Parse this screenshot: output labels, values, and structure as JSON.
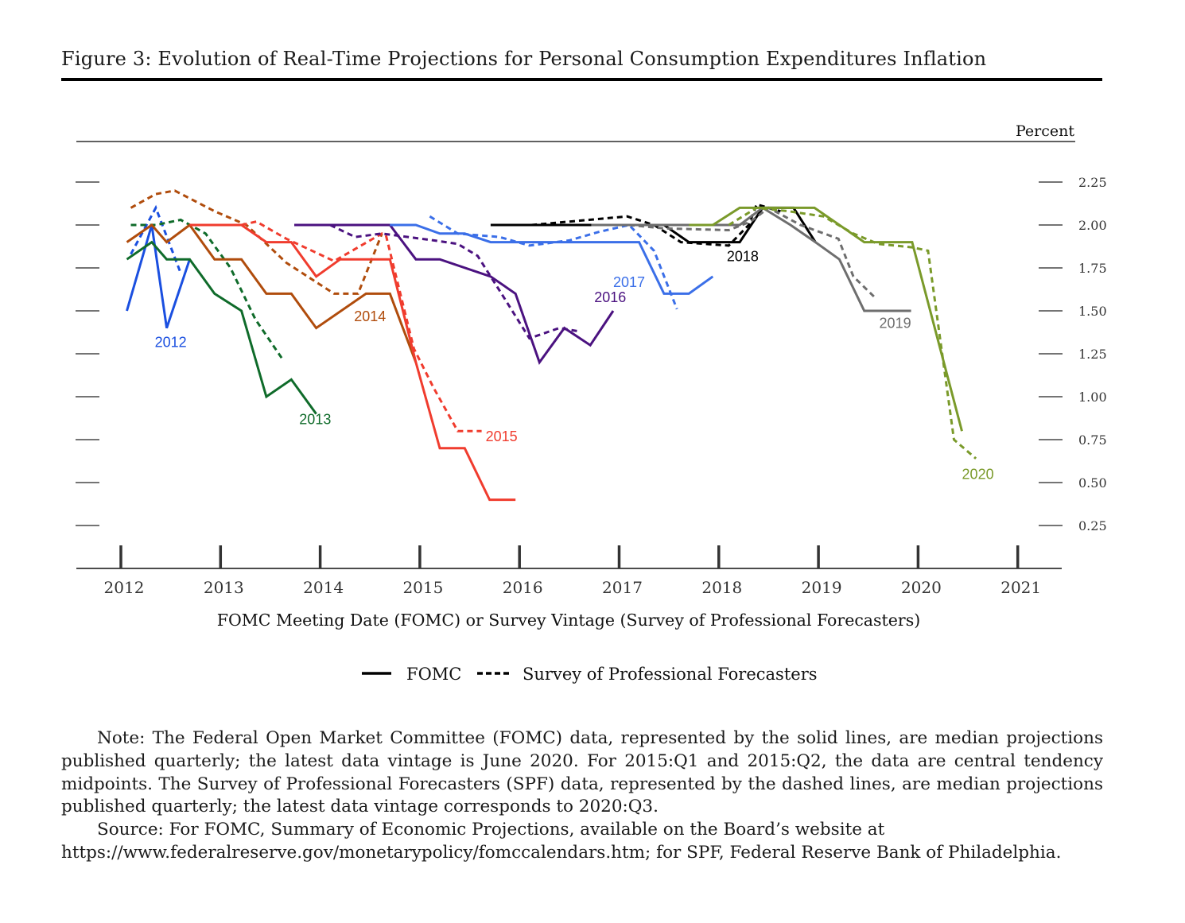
{
  "figure": {
    "title": "Figure 3: Evolution of Real-Time Projections for Personal Consumption Expenditures Inflation",
    "note": "Note: The Federal Open Market Committee (FOMC) data, represented by the solid lines, are median projections published quarterly; the latest data vintage is June 2020. For 2015:Q1 and 2015:Q2, the data are central tendency midpoints. The Survey of Professional Forecasters (SPF) data, represented by the dashed lines, are median projections published quarterly; the latest data vintage corresponds to 2020:Q3.",
    "source_line1": "Source: For FOMC, Summary of Economic Projections, available on the Board’s website at",
    "source_line2": "https://www.federalreserve.gov/monetarypolicy/fomccalendars.htm; for SPF, Federal Reserve Bank of Philadelphia."
  },
  "chart_data": {
    "type": "line",
    "title": "",
    "unit_label": "Percent",
    "xlabel": "FOMC Meeting Date (FOMC) or Survey Vintage (Survey of Professional Forecasters)",
    "ylabel": "Percent",
    "xlim": [
      2011.6,
      2021.45
    ],
    "ylim": [
      0,
      2.5
    ],
    "x_ticks": [
      2012,
      2013,
      2014,
      2015,
      2016,
      2017,
      2018,
      2019,
      2020,
      2021
    ],
    "x_tick_labels": [
      "2012",
      "2013",
      "2014",
      "2015",
      "2016",
      "2017",
      "2018",
      "2019",
      "2020",
      "2021"
    ],
    "y_ticks": [
      0.25,
      0.5,
      0.75,
      1.0,
      1.25,
      1.5,
      1.75,
      2.0,
      2.25
    ],
    "y_tick_labels": [
      "0.25",
      "0.50",
      "0.75",
      "1.00",
      "1.25",
      "1.50",
      "1.75",
      "2.00",
      "2.25"
    ],
    "legend": {
      "placement": "bottom-center",
      "entries": [
        {
          "label": "FOMC",
          "style": "solid"
        },
        {
          "label": "Survey of Professional Forecasters",
          "style": "dashed"
        }
      ]
    },
    "series": [
      {
        "name": "2012",
        "source": "FOMC",
        "style": "solid",
        "color": "#1a4fe0",
        "label_at": [
          2012.5,
          1.29
        ],
        "x": [
          2012.06,
          2012.31,
          2012.46,
          2012.69
        ],
        "y": [
          1.5,
          2.0,
          1.4,
          1.8
        ]
      },
      {
        "name": "2012",
        "source": "SPF",
        "style": "dashed",
        "color": "#1a4fe0",
        "x": [
          2012.1,
          2012.35,
          2012.6
        ],
        "y": [
          1.83,
          2.1,
          1.72
        ]
      },
      {
        "name": "2013",
        "source": "FOMC",
        "style": "solid",
        "color": "#0f6b2a",
        "label_at": [
          2013.95,
          0.84
        ],
        "x": [
          2012.06,
          2012.31,
          2012.46,
          2012.69,
          2012.94,
          2013.21,
          2013.46,
          2013.71,
          2013.96
        ],
        "y": [
          1.8,
          1.9,
          1.8,
          1.8,
          1.6,
          1.5,
          1.0,
          1.1,
          0.9
        ]
      },
      {
        "name": "2013",
        "source": "SPF",
        "style": "dashed",
        "color": "#0f6b2a",
        "x": [
          2012.1,
          2012.35,
          2012.6,
          2012.85,
          2013.1,
          2013.35,
          2013.62
        ],
        "y": [
          2.0,
          2.0,
          2.03,
          1.95,
          1.75,
          1.45,
          1.22
        ]
      },
      {
        "name": "2014",
        "source": "FOMC",
        "style": "solid",
        "color": "#b04c0c",
        "label_at": [
          2014.5,
          1.44
        ],
        "x": [
          2012.06,
          2012.31,
          2012.46,
          2012.69,
          2012.94,
          2013.21,
          2013.46,
          2013.71,
          2013.96,
          2014.46,
          2014.7,
          2014.96
        ],
        "y": [
          1.9,
          2.0,
          1.9,
          2.0,
          1.8,
          1.8,
          1.6,
          1.6,
          1.4,
          1.6,
          1.6,
          1.2
        ]
      },
      {
        "name": "2014",
        "source": "SPF",
        "style": "dashed",
        "color": "#b04c0c",
        "x": [
          2012.1,
          2012.35,
          2012.54,
          2012.94,
          2013.26,
          2013.66,
          2014.14,
          2014.38,
          2014.62
        ],
        "y": [
          2.1,
          2.18,
          2.2,
          2.08,
          2.0,
          1.78,
          1.6,
          1.6,
          1.95
        ]
      },
      {
        "name": "2015",
        "source": "FOMC",
        "style": "solid",
        "color": "#f03c2e",
        "label_at": [
          2015.82,
          0.74
        ],
        "x": [
          2012.69,
          2013.21,
          2013.46,
          2013.71,
          2013.96,
          2014.2,
          2014.7,
          2014.96,
          2015.2,
          2015.45,
          2015.7,
          2015.96
        ],
        "y": [
          2.0,
          2.0,
          1.9,
          1.9,
          1.7,
          1.8,
          1.8,
          1.2,
          0.7,
          0.7,
          0.4,
          0.4
        ]
      },
      {
        "name": "2015",
        "source": "SPF",
        "style": "dashed",
        "color": "#f03c2e",
        "x": [
          2013.21,
          2013.36,
          2013.66,
          2014.14,
          2014.62,
          2014.66,
          2014.94,
          2015.14,
          2015.38,
          2015.62
        ],
        "y": [
          2.0,
          2.02,
          1.92,
          1.79,
          1.95,
          1.94,
          1.28,
          1.05,
          0.8,
          0.8
        ]
      },
      {
        "name": "2016",
        "source": "FOMC",
        "style": "solid",
        "color": "#4b1280",
        "label_at": [
          2016.91,
          1.55
        ],
        "x": [
          2013.74,
          2014.7,
          2014.96,
          2015.2,
          2015.71,
          2015.96,
          2016.2,
          2016.45,
          2016.71,
          2016.94
        ],
        "y": [
          2.0,
          2.0,
          1.8,
          1.8,
          1.7,
          1.6,
          1.2,
          1.4,
          1.3,
          1.5
        ]
      },
      {
        "name": "2016",
        "source": "SPF",
        "style": "dashed",
        "color": "#4b1280",
        "x": [
          2014.1,
          2014.35,
          2014.62,
          2015.14,
          2015.38,
          2015.58,
          2015.82,
          2016.1,
          2016.4,
          2016.6
        ],
        "y": [
          2.0,
          1.93,
          1.95,
          1.91,
          1.89,
          1.82,
          1.6,
          1.34,
          1.4,
          1.38
        ]
      },
      {
        "name": "2017",
        "source": "FOMC",
        "style": "solid",
        "color": "#3b6fe8",
        "label_at": [
          2017.1,
          1.64
        ],
        "x": [
          2014.7,
          2014.96,
          2015.2,
          2015.45,
          2015.71,
          2016.2,
          2016.71,
          2017.2,
          2017.45,
          2017.7,
          2017.94
        ],
        "y": [
          2.0,
          2.0,
          1.95,
          1.95,
          1.9,
          1.9,
          1.9,
          1.9,
          1.6,
          1.6,
          1.7
        ]
      },
      {
        "name": "2017",
        "source": "SPF",
        "style": "dashed",
        "color": "#3b6fe8",
        "x": [
          2015.1,
          2015.38,
          2015.8,
          2016.1,
          2016.5,
          2016.8,
          2017.1,
          2017.35,
          2017.58
        ],
        "y": [
          2.05,
          1.95,
          1.93,
          1.88,
          1.91,
          1.96,
          2.0,
          1.85,
          1.51
        ]
      },
      {
        "name": "2018",
        "source": "FOMC",
        "style": "solid",
        "color": "#000000",
        "label_at": [
          2018.24,
          1.79
        ],
        "x": [
          2015.71,
          2017.45,
          2017.7,
          2018.21,
          2018.44,
          2018.75,
          2018.97
        ],
        "y": [
          2.0,
          2.0,
          1.9,
          1.9,
          2.1,
          2.1,
          1.9
        ]
      },
      {
        "name": "2018",
        "source": "SPF",
        "style": "dashed",
        "color": "#000000",
        "x": [
          2016.12,
          2016.7,
          2017.08,
          2017.35,
          2017.62,
          2018.1,
          2018.3,
          2018.38,
          2018.62
        ],
        "y": [
          2.0,
          2.03,
          2.05,
          2.0,
          1.9,
          1.88,
          2.0,
          2.12,
          2.08
        ]
      },
      {
        "name": "2019",
        "source": "FOMC",
        "style": "solid",
        "color": "#6e6e6e",
        "label_at": [
          2019.77,
          1.4
        ],
        "x": [
          2016.72,
          2018.21,
          2018.44,
          2018.72,
          2018.97,
          2019.21,
          2019.46,
          2019.93
        ],
        "y": [
          2.0,
          2.0,
          2.1,
          2.0,
          1.9,
          1.8,
          1.5,
          1.5
        ]
      },
      {
        "name": "2019",
        "source": "SPF",
        "style": "dashed",
        "color": "#6e6e6e",
        "x": [
          2017.1,
          2017.45,
          2018.1,
          2018.32,
          2018.5,
          2018.82,
          2019.2,
          2019.35,
          2019.58
        ],
        "y": [
          2.0,
          1.98,
          1.97,
          2.02,
          2.1,
          2.0,
          1.92,
          1.7,
          1.57
        ]
      },
      {
        "name": "2020",
        "source": "FOMC",
        "style": "solid",
        "color": "#7a9a2a",
        "label_at": [
          2020.6,
          0.52
        ],
        "x": [
          2017.7,
          2017.94,
          2018.21,
          2018.96,
          2019.46,
          2019.94,
          2020.44
        ],
        "y": [
          2.0,
          2.0,
          2.1,
          2.1,
          1.9,
          1.9,
          0.8
        ]
      },
      {
        "name": "2020",
        "source": "SPF",
        "style": "dashed",
        "color": "#7a9a2a",
        "x": [
          2018.1,
          2018.38,
          2018.7,
          2019.05,
          2019.35,
          2019.6,
          2019.94,
          2020.1,
          2020.36,
          2020.58
        ],
        "y": [
          2.0,
          2.1,
          2.08,
          2.05,
          1.95,
          1.89,
          1.87,
          1.85,
          0.75,
          0.64
        ]
      }
    ]
  }
}
